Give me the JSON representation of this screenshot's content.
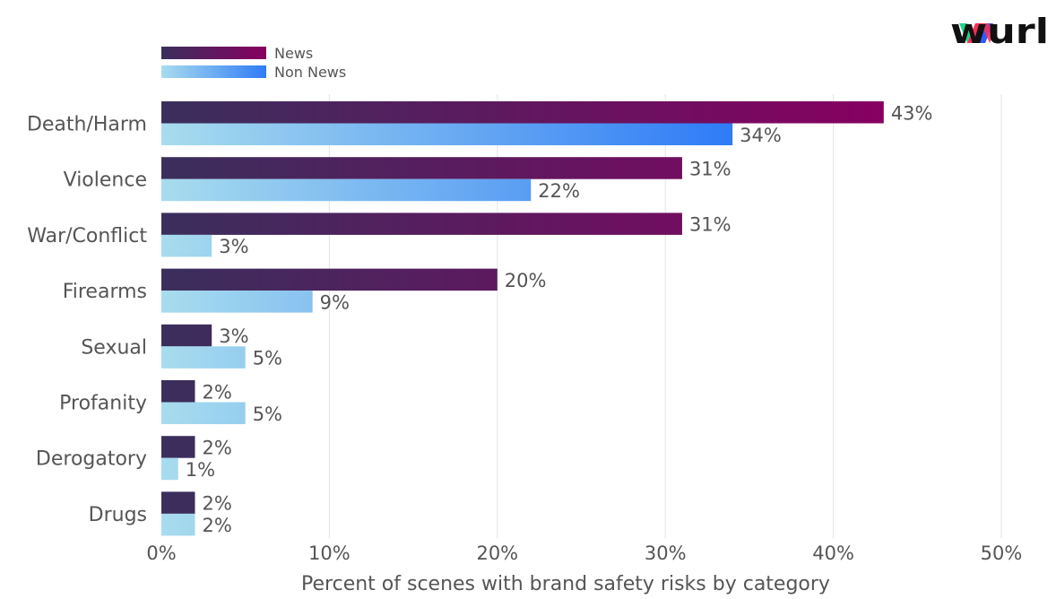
{
  "brand": {
    "logo_text": "wurl"
  },
  "colors": {
    "news_start": "#3a2f5c",
    "news_end": "#870061",
    "nonnews_start": "#a8dcee",
    "nonnews_end": "#2f7cf6",
    "text": "#555555",
    "grid": "#e3e3e3",
    "logo_w_green": "#1ed68a",
    "logo_w_red": "#ff2d55",
    "logo_w_blue": "#2d5bff",
    "logo_text": "#111111"
  },
  "chart_data": {
    "type": "bar",
    "orientation": "horizontal",
    "categories": [
      "Death/Harm",
      "Violence",
      "War/Conflict",
      "Firearms",
      "Sexual",
      "Profanity",
      "Derogatory",
      "Drugs"
    ],
    "series": [
      {
        "name": "News",
        "values": [
          43,
          31,
          31,
          20,
          3,
          2,
          2,
          2
        ],
        "labels": [
          "43%",
          "31%",
          "31%",
          "20%",
          "3%",
          "2%",
          "2%",
          "2%"
        ]
      },
      {
        "name": "Non News",
        "values": [
          34,
          22,
          3,
          9,
          5,
          5,
          1,
          2
        ],
        "labels": [
          "34%",
          "22%",
          "3%",
          "9%",
          "5%",
          "5%",
          "1%",
          "2%"
        ]
      }
    ],
    "xlabel": "Percent of scenes with brand safety risks by category",
    "ylabel": "",
    "xlim": [
      0,
      50
    ],
    "xticks": [
      "0%",
      "10%",
      "20%",
      "30%",
      "40%",
      "50%"
    ],
    "grid": true,
    "legend_position": "top-left"
  }
}
